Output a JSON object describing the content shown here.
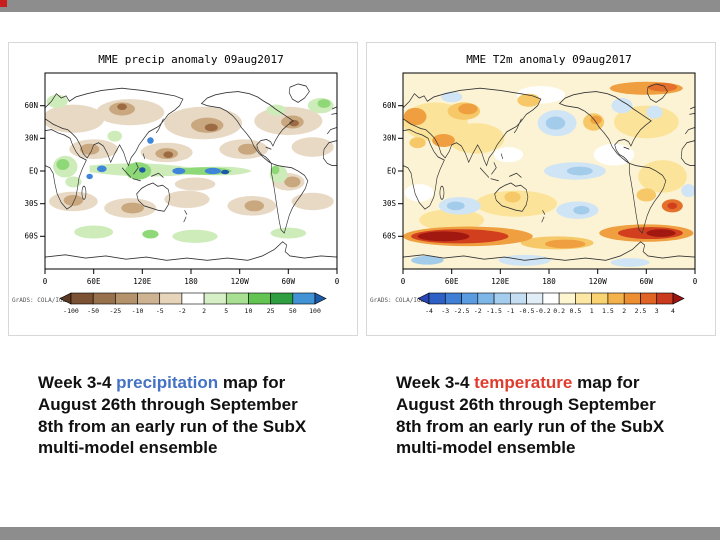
{
  "slide": {
    "background": "#ffffff",
    "band_color": "#8d8d8d",
    "corner_marker_color": "#c81e1e"
  },
  "panels": [
    {
      "title": "MME precip anomaly 09aug2017",
      "credit": "GrADS: COLA/IGES",
      "lat_ticks": [
        "60N",
        "30N",
        "EQ",
        "30S",
        "60S"
      ],
      "lon_ticks": [
        "0",
        "60E",
        "120E",
        "180",
        "120W",
        "60W",
        "0"
      ],
      "colorbar": {
        "labels": [
          "-100",
          "-50",
          "-25",
          "-10",
          "-5",
          "-2",
          "2",
          "5",
          "10",
          "25",
          "50",
          "100"
        ],
        "colors": [
          "#5a3a22",
          "#7c5234",
          "#97704c",
          "#b3926c",
          "#cdb391",
          "#e6d5ba",
          "#ffffff",
          "#d7efc7",
          "#a9df92",
          "#63c453",
          "#2f9e41",
          "#4292d6",
          "#1c5aa8"
        ]
      },
      "caption": {
        "prefix": "Week 3-4 ",
        "keyword": "precipitation",
        "keyword_color": "#4472c4",
        "suffix": " map for August 26th through September 8th from an early run of the SubX multi-model ensemble"
      }
    },
    {
      "title": "MME T2m anomaly 09aug2017",
      "credit": "GrADS: COLA/IGES",
      "lat_ticks": [
        "60N",
        "30N",
        "EQ",
        "30S",
        "60S"
      ],
      "lon_ticks": [
        "0",
        "60E",
        "120E",
        "180",
        "120W",
        "60W",
        "0"
      ],
      "colorbar": {
        "labels": [
          "-4",
          "-3",
          "-2.5",
          "-2",
          "-1.5",
          "-1",
          "-0.5",
          "-0.2",
          "0.2",
          "0.5",
          "1",
          "1.5",
          "2",
          "2.5",
          "3",
          "4"
        ],
        "colors": [
          "#2b46b4",
          "#2e5fc4",
          "#3f7fd6",
          "#5b9ce0",
          "#7fb6e8",
          "#a4cdee",
          "#c6def2",
          "#e1eef8",
          "#ffffff",
          "#fdf6d0",
          "#fce8a4",
          "#f9d271",
          "#f3b24b",
          "#ec8f33",
          "#df6426",
          "#c93a1e",
          "#9c1410"
        ]
      },
      "caption": {
        "prefix": "Week 3-4 ",
        "keyword": "temperature",
        "keyword_color": "#e03c2d",
        "suffix": " map for August 26th through September 8th from an early run of the SubX multi-model ensemble"
      }
    }
  ]
}
